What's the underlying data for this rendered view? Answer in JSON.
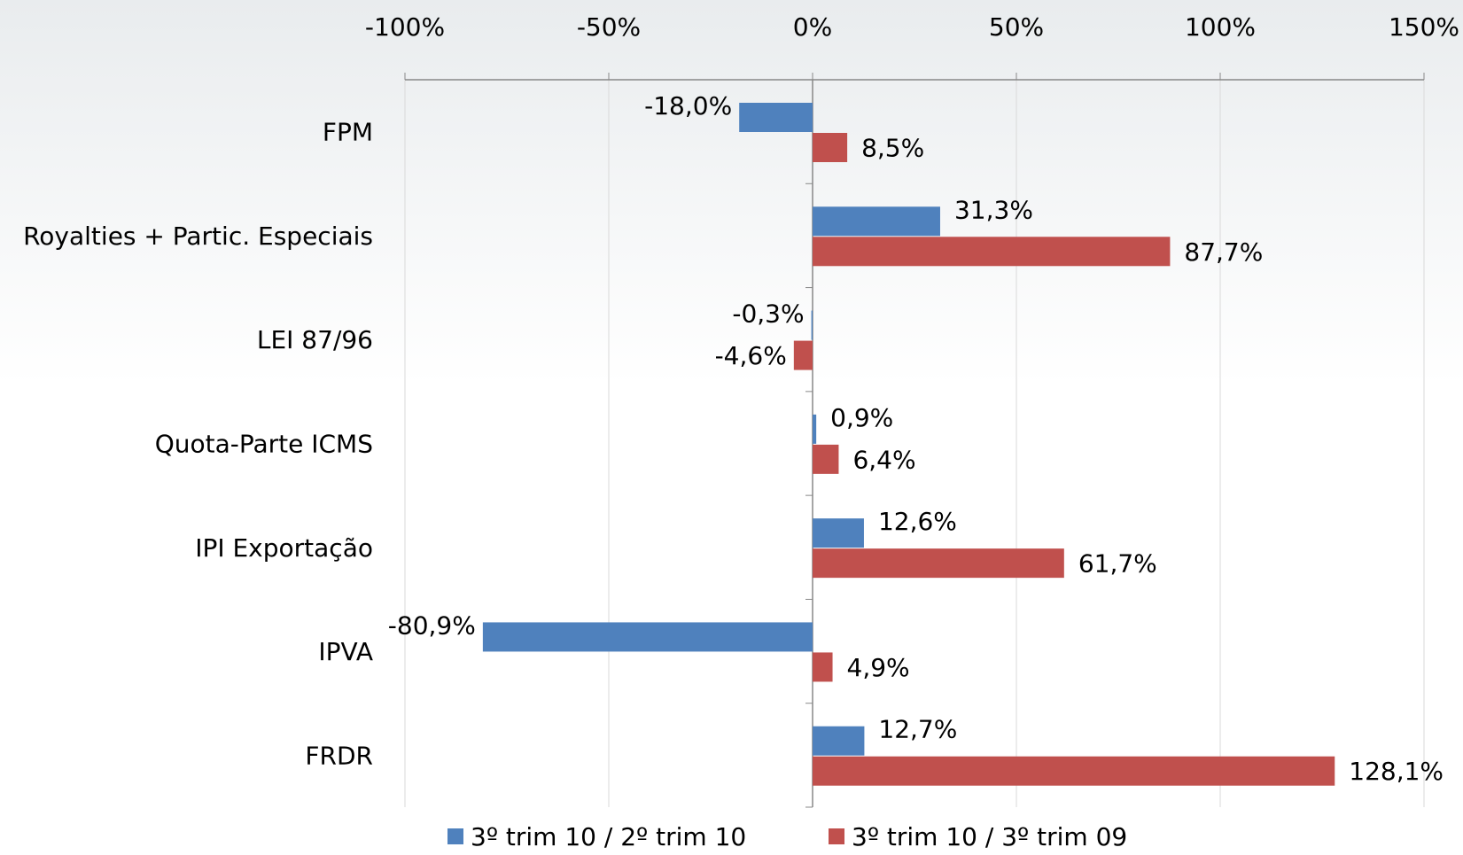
{
  "chart_data": {
    "type": "bar",
    "orientation": "horizontal",
    "categories": [
      "FPM",
      "Royalties + Partic. Especiais",
      "LEI 87/96",
      "Quota-Parte ICMS",
      "IPI Exportação",
      "IPVA",
      "FRDR"
    ],
    "series": [
      {
        "name": "3º trim 10 / 2º trim 10",
        "color": "#4f81bd",
        "values": [
          -18.0,
          31.3,
          -0.3,
          0.9,
          12.6,
          -80.9,
          12.7
        ],
        "value_labels": [
          "-18,0%",
          "31,3%",
          "-0,3%",
          "0,9%",
          "12,6%",
          "-80,9%",
          "12,7%"
        ]
      },
      {
        "name": "3º trim 10 / 3º trim 09",
        "color": "#c0504d",
        "values": [
          8.5,
          87.7,
          -4.6,
          6.4,
          61.7,
          4.9,
          128.1
        ],
        "value_labels": [
          "8,5%",
          "87,7%",
          "-4,6%",
          "6,4%",
          "61,7%",
          "4,9%",
          "128,1%"
        ]
      }
    ],
    "xlim": [
      -100,
      150
    ],
    "xticks": [
      {
        "value": -100,
        "label": "-100%"
      },
      {
        "value": -50,
        "label": "-50%"
      },
      {
        "value": 0,
        "label": "0%"
      },
      {
        "value": 50,
        "label": "50%"
      },
      {
        "value": 100,
        "label": "100%"
      },
      {
        "value": 150,
        "label": "150%"
      }
    ],
    "grid": true,
    "legend": "bottom"
  }
}
